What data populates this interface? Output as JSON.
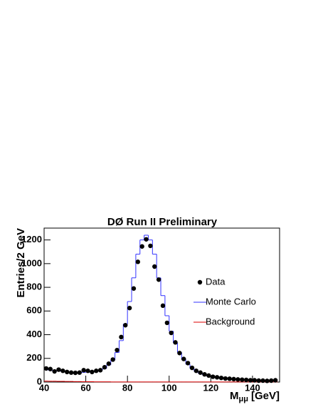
{
  "chart_data": {
    "type": "histogram",
    "title": "DØ Run II Preliminary",
    "y_label": "Entries/2 GeV",
    "x_label": {
      "main": "M",
      "sub": "μμ",
      "unit": "[GeV]"
    },
    "xlim": [
      40,
      153
    ],
    "ylim": [
      0,
      1300
    ],
    "xticks": [
      40,
      60,
      80,
      100,
      120,
      140
    ],
    "yticks": [
      0,
      200,
      400,
      600,
      800,
      1000,
      1200
    ],
    "bins": [
      40,
      42,
      44,
      46,
      48,
      50,
      52,
      54,
      56,
      58,
      60,
      62,
      64,
      66,
      68,
      70,
      72,
      74,
      76,
      78,
      80,
      82,
      84,
      86,
      88,
      90,
      92,
      94,
      96,
      98,
      100,
      102,
      104,
      106,
      108,
      110,
      112,
      114,
      116,
      118,
      120,
      122,
      124,
      126,
      128,
      130,
      132,
      134,
      136,
      138,
      140,
      142,
      144,
      146,
      148,
      150,
      152
    ],
    "series": [
      {
        "name": "Data",
        "style": "markers",
        "color": "#000000",
        "values": [
          115,
          110,
          90,
          105,
          95,
          85,
          80,
          78,
          80,
          100,
          95,
          85,
          95,
          100,
          125,
          155,
          190,
          270,
          380,
          480,
          625,
          790,
          1015,
          1145,
          1205,
          1150,
          975,
          865,
          645,
          500,
          415,
          335,
          245,
          195,
          160,
          120,
          95,
          80,
          65,
          55,
          45,
          40,
          35,
          30,
          28,
          25,
          22,
          20,
          18,
          15,
          15,
          12,
          12,
          10,
          12,
          15
        ]
      },
      {
        "name": "Monte Carlo",
        "style": "step",
        "color": "#3333ff",
        "values": [
          110,
          100,
          95,
          95,
          90,
          85,
          80,
          78,
          80,
          82,
          85,
          88,
          92,
          100,
          115,
          145,
          185,
          250,
          350,
          490,
          680,
          880,
          1080,
          1200,
          1240,
          1200,
          1080,
          880,
          730,
          560,
          430,
          330,
          250,
          190,
          150,
          115,
          90,
          72,
          60,
          50,
          43,
          37,
          32,
          28,
          25,
          22,
          20,
          18,
          16,
          14,
          13,
          12,
          11,
          10,
          9,
          9
        ]
      },
      {
        "name": "Background",
        "style": "step",
        "color": "#dd0000",
        "values": [
          8,
          7,
          7,
          6,
          6,
          5,
          5,
          4,
          4,
          3,
          3,
          3,
          2,
          2,
          2,
          2,
          1,
          1,
          1,
          1,
          1,
          1,
          1,
          1,
          1,
          1,
          1,
          1,
          1,
          1,
          1,
          1,
          1,
          1,
          1,
          1,
          1,
          1,
          1,
          1,
          1,
          1,
          1,
          1,
          1,
          1,
          1,
          1,
          1,
          1,
          1,
          1,
          1,
          1,
          1,
          1
        ]
      }
    ]
  }
}
